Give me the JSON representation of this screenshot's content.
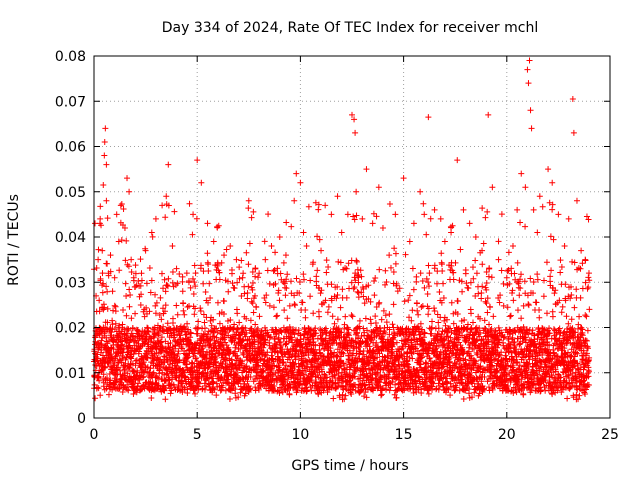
{
  "chart_data": {
    "type": "scatter",
    "title": "Day 334 of 2024, Rate Of TEC Index for receiver mchl",
    "xlabel": "GPS time / hours",
    "ylabel": "ROTI / TECUs",
    "xlim": [
      0,
      25
    ],
    "ylim": [
      0,
      0.08
    ],
    "x_ticks": [
      0,
      5,
      10,
      15,
      20,
      25
    ],
    "x_tick_labels": [
      "0",
      "5",
      "10",
      "15",
      "20",
      "25"
    ],
    "y_ticks": [
      0,
      0.01,
      0.02,
      0.03,
      0.04,
      0.05,
      0.06,
      0.07,
      0.08
    ],
    "y_tick_labels": [
      "0",
      "0.01",
      "0.02",
      "0.03",
      "0.04",
      "0.05",
      "0.06",
      "0.07",
      "0.08"
    ],
    "grid": true,
    "marker": "+",
    "point_color": "#ff0000",
    "data_x_range": [
      0,
      24
    ],
    "series": [
      {
        "name": "ROTI",
        "points": [
          [
            0.0,
            0.0125
          ],
          [
            0.05,
            0.043
          ],
          [
            0.1,
            0.027
          ],
          [
            0.2,
            0.035
          ],
          [
            0.25,
            0.026
          ],
          [
            0.3,
            0.044
          ],
          [
            0.4,
            0.037
          ],
          [
            0.45,
            0.0515
          ],
          [
            0.5,
            0.058
          ],
          [
            0.52,
            0.061
          ],
          [
            0.55,
            0.064
          ],
          [
            0.6,
            0.048
          ],
          [
            0.6,
            0.056
          ],
          [
            0.7,
            0.032
          ],
          [
            0.8,
            0.036
          ],
          [
            0.9,
            0.028
          ],
          [
            1.0,
            0.031
          ],
          [
            1.1,
            0.045
          ],
          [
            1.2,
            0.039
          ],
          [
            1.3,
            0.047
          ],
          [
            1.5,
            0.042
          ],
          [
            1.6,
            0.053
          ],
          [
            1.7,
            0.05
          ],
          [
            1.8,
            0.035
          ],
          [
            2.0,
            0.029
          ],
          [
            2.3,
            0.032
          ],
          [
            2.5,
            0.037
          ],
          [
            2.8,
            0.041
          ],
          [
            3.0,
            0.044
          ],
          [
            3.3,
            0.047
          ],
          [
            3.5,
            0.049
          ],
          [
            3.6,
            0.056
          ],
          [
            3.8,
            0.038
          ],
          [
            4.0,
            0.033
          ],
          [
            4.3,
            0.028
          ],
          [
            4.6,
            0.03
          ],
          [
            4.8,
            0.045
          ],
          [
            5.0,
            0.057
          ],
          [
            5.2,
            0.052
          ],
          [
            5.5,
            0.043
          ],
          [
            5.8,
            0.039
          ],
          [
            6.0,
            0.034
          ],
          [
            6.3,
            0.036
          ],
          [
            6.6,
            0.038
          ],
          [
            6.9,
            0.035
          ],
          [
            7.2,
            0.031
          ],
          [
            7.5,
            0.048
          ],
          [
            7.8,
            0.027
          ],
          [
            8.0,
            0.032
          ],
          [
            8.3,
            0.035
          ],
          [
            8.6,
            0.038
          ],
          [
            9.0,
            0.04
          ],
          [
            9.3,
            0.036
          ],
          [
            9.7,
            0.048
          ],
          [
            9.8,
            0.054
          ],
          [
            10.0,
            0.052
          ],
          [
            10.3,
            0.038
          ],
          [
            10.6,
            0.034
          ],
          [
            11.0,
            0.037
          ],
          [
            11.2,
            0.047
          ],
          [
            11.5,
            0.045
          ],
          [
            11.8,
            0.049
          ],
          [
            12.0,
            0.041
          ],
          [
            12.3,
            0.045
          ],
          [
            12.5,
            0.067
          ],
          [
            12.6,
            0.066
          ],
          [
            12.65,
            0.063
          ],
          [
            12.7,
            0.05
          ],
          [
            13.0,
            0.044
          ],
          [
            13.2,
            0.055
          ],
          [
            13.5,
            0.043
          ],
          [
            13.8,
            0.051
          ],
          [
            14.0,
            0.042
          ],
          [
            14.3,
            0.036
          ],
          [
            14.6,
            0.045
          ],
          [
            15.0,
            0.053
          ],
          [
            15.3,
            0.039
          ],
          [
            15.5,
            0.043
          ],
          [
            15.8,
            0.05
          ],
          [
            16.0,
            0.045
          ],
          [
            16.2,
            0.0665
          ],
          [
            16.5,
            0.046
          ],
          [
            16.8,
            0.044
          ],
          [
            17.0,
            0.039
          ],
          [
            17.3,
            0.041
          ],
          [
            17.6,
            0.057
          ],
          [
            17.9,
            0.046
          ],
          [
            18.2,
            0.043
          ],
          [
            18.5,
            0.04
          ],
          [
            18.8,
            0.037
          ],
          [
            19.1,
            0.067
          ],
          [
            19.3,
            0.051
          ],
          [
            19.6,
            0.035
          ],
          [
            20.0,
            0.031
          ],
          [
            20.3,
            0.038
          ],
          [
            20.5,
            0.046
          ],
          [
            20.7,
            0.054
          ],
          [
            20.9,
            0.051
          ],
          [
            21.0,
            0.077
          ],
          [
            21.05,
            0.074
          ],
          [
            21.1,
            0.079
          ],
          [
            21.15,
            0.068
          ],
          [
            21.2,
            0.064
          ],
          [
            21.3,
            0.046
          ],
          [
            21.6,
            0.049
          ],
          [
            22.0,
            0.055
          ],
          [
            22.2,
            0.052
          ],
          [
            22.5,
            0.045
          ],
          [
            22.8,
            0.038
          ],
          [
            23.0,
            0.044
          ],
          [
            23.2,
            0.0705
          ],
          [
            23.25,
            0.063
          ],
          [
            23.4,
            0.048
          ],
          [
            23.6,
            0.037
          ],
          [
            23.8,
            0.035
          ],
          [
            24.0,
            0.024
          ]
        ]
      }
    ]
  }
}
